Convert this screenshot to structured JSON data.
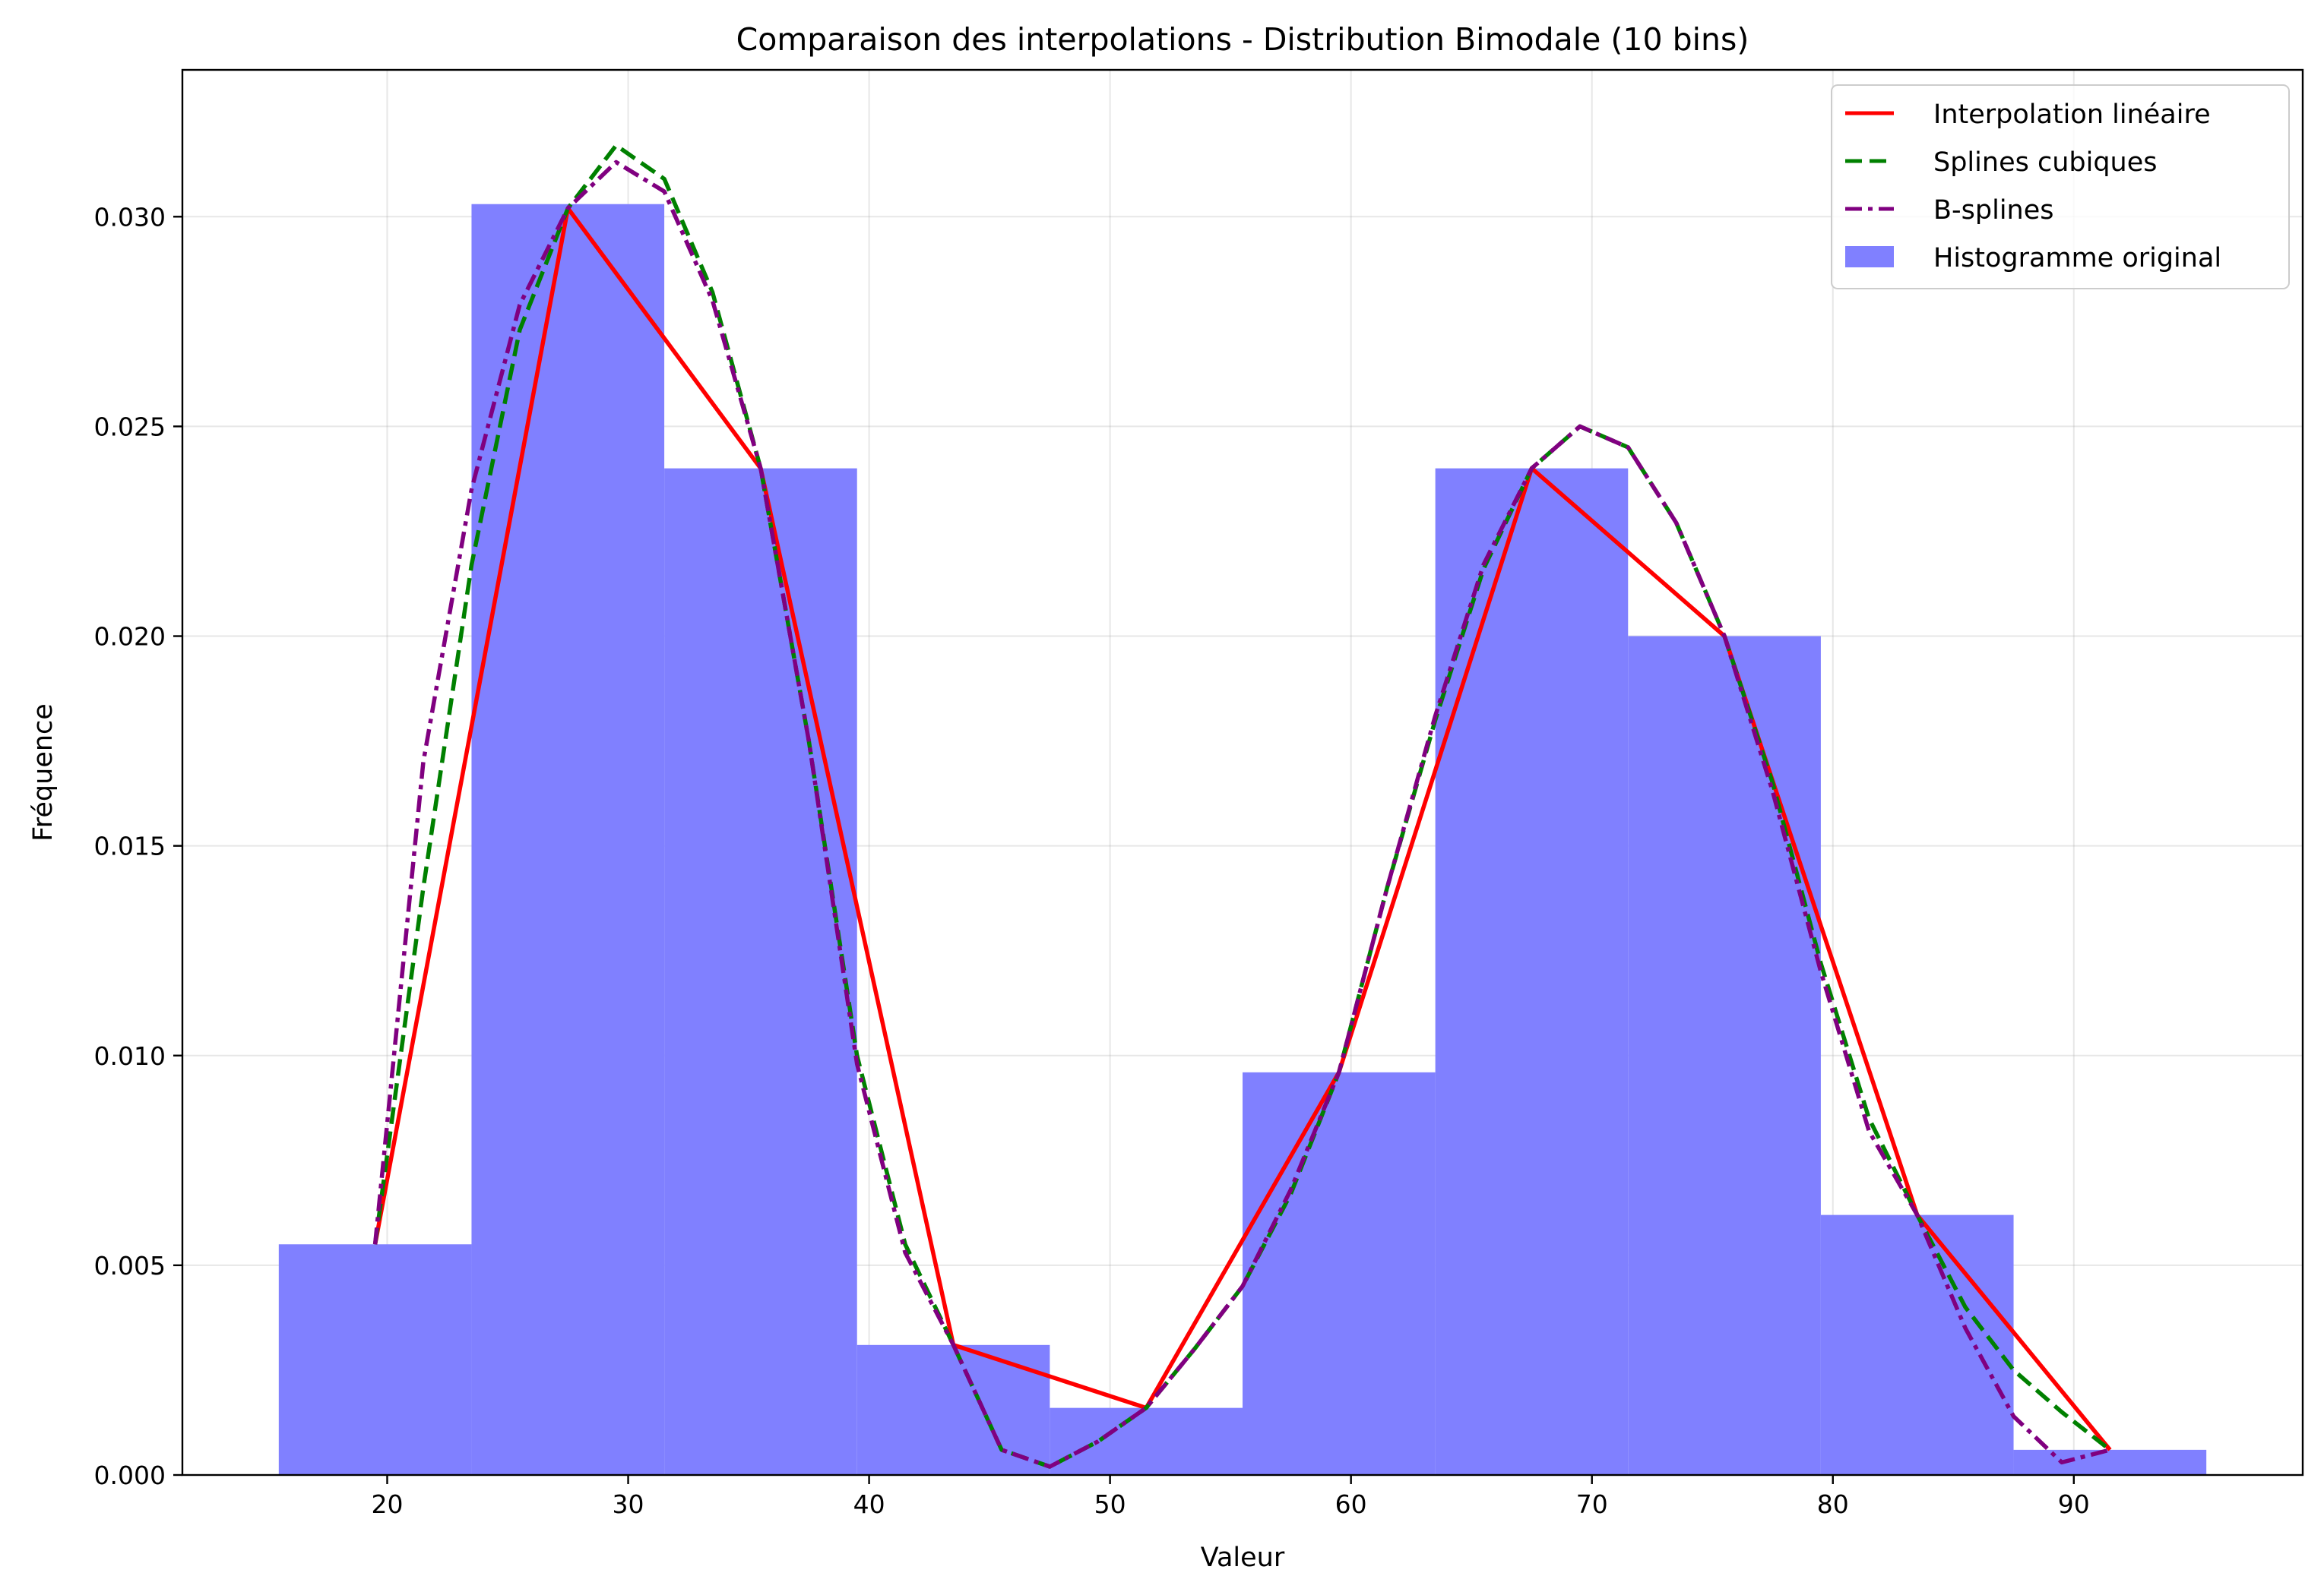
{
  "chart_data": {
    "type": "bar",
    "title": "Comparaison des interpolations - Distribution Bimodale (10 bins)",
    "xlabel": "Valeur",
    "ylabel": "Fréquence",
    "xlim": [
      11.5,
      99.5
    ],
    "ylim": [
      0,
      0.0335
    ],
    "grid": true,
    "legend_position": "top-right",
    "x_ticks": [
      20,
      30,
      40,
      50,
      60,
      70,
      80,
      90
    ],
    "y_ticks": [
      0.0,
      0.005,
      0.01,
      0.015,
      0.02,
      0.025,
      0.03
    ],
    "x_tick_labels": [
      "20",
      "30",
      "40",
      "50",
      "60",
      "70",
      "80",
      "90"
    ],
    "y_tick_labels": [
      "0.000",
      "0.005",
      "0.010",
      "0.015",
      "0.020",
      "0.025",
      "0.030"
    ],
    "histogram": {
      "name": "Histogramme original",
      "color": "#8080ff",
      "bin_edges": [
        15.5,
        23.5,
        31.5,
        39.5,
        47.5,
        55.5,
        63.5,
        71.5,
        79.5,
        87.5,
        95.5
      ],
      "values": [
        0.0055,
        0.0303,
        0.024,
        0.0031,
        0.0016,
        0.0096,
        0.024,
        0.02,
        0.0062,
        0.0006
      ]
    },
    "bin_centers": [
      19.5,
      27.5,
      35.5,
      43.5,
      51.5,
      59.5,
      67.5,
      75.5,
      83.5,
      91.5
    ],
    "series": [
      {
        "name": "Interpolation linéaire",
        "color": "#ff0000",
        "style": "solid",
        "x": [
          19.5,
          27.5,
          35.5,
          43.5,
          51.5,
          59.5,
          67.5,
          75.5,
          83.5,
          91.5
        ],
        "y": [
          0.0055,
          0.0302,
          0.024,
          0.0031,
          0.0016,
          0.0096,
          0.024,
          0.02,
          0.0062,
          0.0006
        ]
      },
      {
        "name": "Splines cubiques",
        "color": "#008000",
        "style": "dashed",
        "x": [
          19.5,
          21.5,
          23.5,
          25.5,
          27.5,
          29.5,
          31.5,
          33.5,
          35.5,
          37.5,
          39.5,
          41.5,
          43.5,
          45.5,
          47.5,
          49.5,
          51.5,
          53.5,
          55.5,
          57.5,
          59.5,
          61.5,
          63.5,
          65.5,
          67.5,
          69.5,
          71.5,
          73.5,
          75.5,
          77.5,
          79.5,
          81.5,
          83.5,
          85.5,
          87.5,
          89.5,
          91.5
        ],
        "y": [
          0.0055,
          0.014,
          0.0217,
          0.0273,
          0.0302,
          0.0317,
          0.0309,
          0.0282,
          0.024,
          0.0175,
          0.01,
          0.0055,
          0.0031,
          0.0006,
          0.0002,
          0.0008,
          0.0016,
          0.003,
          0.0045,
          0.0067,
          0.0096,
          0.014,
          0.018,
          0.0216,
          0.024,
          0.025,
          0.0245,
          0.0227,
          0.02,
          0.0165,
          0.0122,
          0.0085,
          0.0062,
          0.004,
          0.0025,
          0.0015,
          0.0006
        ]
      },
      {
        "name": "B-splines",
        "color": "#800080",
        "style": "dashdot",
        "x": [
          19.5,
          21.5,
          23.5,
          25.5,
          27.5,
          29.5,
          31.5,
          33.5,
          35.5,
          37.5,
          39.5,
          41.5,
          43.5,
          45.5,
          47.5,
          49.5,
          51.5,
          53.5,
          55.5,
          57.5,
          59.5,
          61.5,
          63.5,
          65.5,
          67.5,
          69.5,
          71.5,
          73.5,
          75.5,
          77.5,
          79.5,
          81.5,
          83.5,
          85.5,
          87.5,
          89.5,
          91.5
        ],
        "y": [
          0.0055,
          0.017,
          0.0235,
          0.0279,
          0.0302,
          0.0313,
          0.0306,
          0.028,
          0.024,
          0.0175,
          0.0098,
          0.0053,
          0.0031,
          0.0006,
          0.0002,
          0.0008,
          0.0016,
          0.003,
          0.0045,
          0.0068,
          0.0096,
          0.014,
          0.0181,
          0.0217,
          0.024,
          0.025,
          0.0245,
          0.0227,
          0.02,
          0.0163,
          0.012,
          0.0082,
          0.0062,
          0.0035,
          0.0014,
          0.0003,
          0.0006
        ]
      }
    ]
  }
}
